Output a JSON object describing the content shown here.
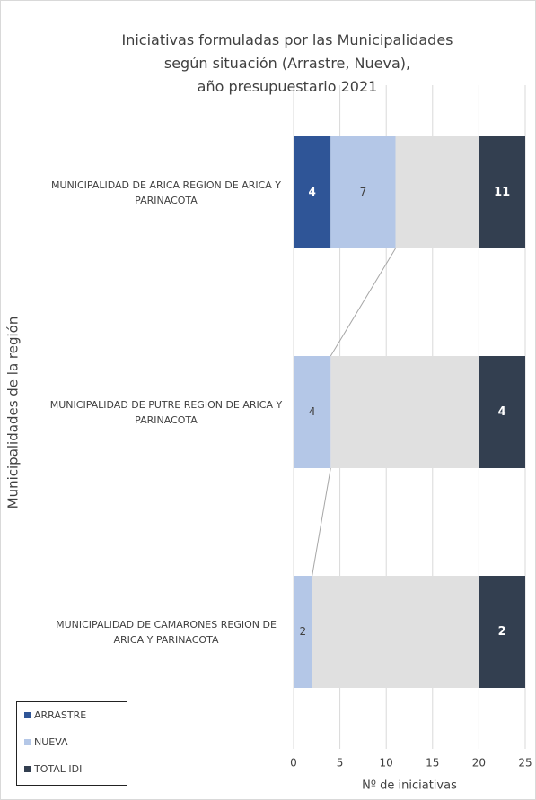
{
  "chart_data": {
    "type": "bar",
    "orientation": "horizontal",
    "stacked": true,
    "title": [
      "Iniciativas formuladas por las Municipalidades",
      "según situación (Arrastre, Nueva),",
      "año presupuestario 2021"
    ],
    "x_label": "Nº de iniciativas",
    "y_label": "Municipalidades de la región",
    "categories": [
      "MUNICIPALIDAD DE ARICA REGION DE ARICA Y PARINACOTA",
      "MUNICIPALIDAD DE PUTRE REGION DE ARICA Y PARINACOTA",
      "MUNICIPALIDAD DE CAMARONES REGION DE ARICA Y PARINACOTA"
    ],
    "series": [
      {
        "name": "ARRASTRE",
        "color": "#2f5597",
        "values": [
          4,
          null,
          null
        ]
      },
      {
        "name": "NUEVA",
        "color": "#b4c7e7",
        "values": [
          7,
          4,
          2
        ]
      },
      {
        "name": "TOTAL IDI",
        "color": "#333f50",
        "values": [
          11,
          4,
          2
        ]
      }
    ],
    "xlim": [
      0,
      25
    ],
    "xticks": [
      0,
      5,
      10,
      15,
      20,
      25
    ],
    "grid": true,
    "legend": "bottom-left"
  }
}
